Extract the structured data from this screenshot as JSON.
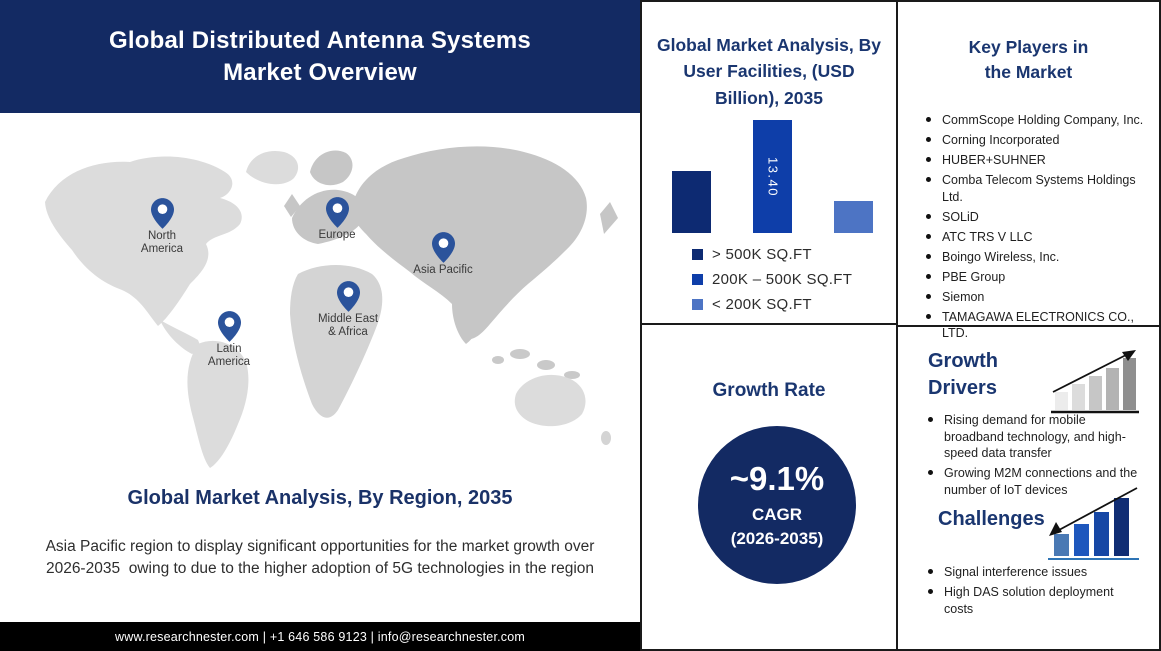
{
  "header": {
    "title": "Global Distributed Antenna Systems\nMarket Overview"
  },
  "map": {
    "regions": [
      {
        "label": "North\nAmerica"
      },
      {
        "label": "Europe"
      },
      {
        "label": "Asia Pacific"
      },
      {
        "label": "Middle East\n& Africa"
      },
      {
        "label": "Latin\nAmerica"
      }
    ]
  },
  "region_section": {
    "title": "Global Market Analysis, By Region, 2035",
    "description": "Asia Pacific region to display significant opportunities for the market growth over  2026-2035  owing to due to the higher adoption of 5G technologies in the region"
  },
  "footer": {
    "contact": "www.researchnester.com  | +1 646 586 9123 | info@researchnester.com"
  },
  "chart_data": [
    {
      "type": "bar",
      "title": "Global Market Analysis, By User Facilities, (USD Billion), 2035",
      "categories": [
        "> 500K SQ.FT",
        "200K – 500K SQ.FT",
        "< 200K SQ.FT"
      ],
      "values": [
        7.4,
        13.4,
        3.8
      ],
      "bar_labels": [
        null,
        "13.40",
        null
      ],
      "colors": [
        "#0d2a72",
        "#0e3ea9",
        "#4d74c4"
      ],
      "ylim": [
        0,
        15
      ],
      "legend_position": "bottom",
      "xlabel": "",
      "ylabel": "USD Billion"
    }
  ],
  "growth_rate": {
    "title": "Growth Rate",
    "value": "~9.1%",
    "label": "CAGR",
    "period": "(2026-2035)",
    "circle_color": "#132a63"
  },
  "key_players": {
    "title": "Key Players in\nthe Market",
    "companies": [
      "CommScope Holding Company, Inc.",
      "Corning Incorporated",
      "HUBER+SUHNER",
      "Comba Telecom Systems Holdings Ltd.",
      "SOLiD",
      "ATC TRS V LLC",
      "Boingo Wireless, Inc.",
      "PBE Group",
      "Siemon",
      "TAMAGAWA ELECTRONICS CO., LTD."
    ]
  },
  "growth_drivers": {
    "title": "Growth\nDrivers",
    "items": [
      "Rising demand for mobile broadband technology, and high-speed data transfer",
      "Growing M2M connections and the number of IoT devices"
    ]
  },
  "challenges": {
    "title": "Challenges",
    "items": [
      "Signal interference issues",
      "High DAS solution deployment costs"
    ]
  },
  "colors": {
    "navy": "#132a63",
    "heading_navy": "#1a3670",
    "pin_blue": "#2b539b",
    "map_light": "#dcdcdc",
    "map_dark": "#c6c6c6"
  }
}
